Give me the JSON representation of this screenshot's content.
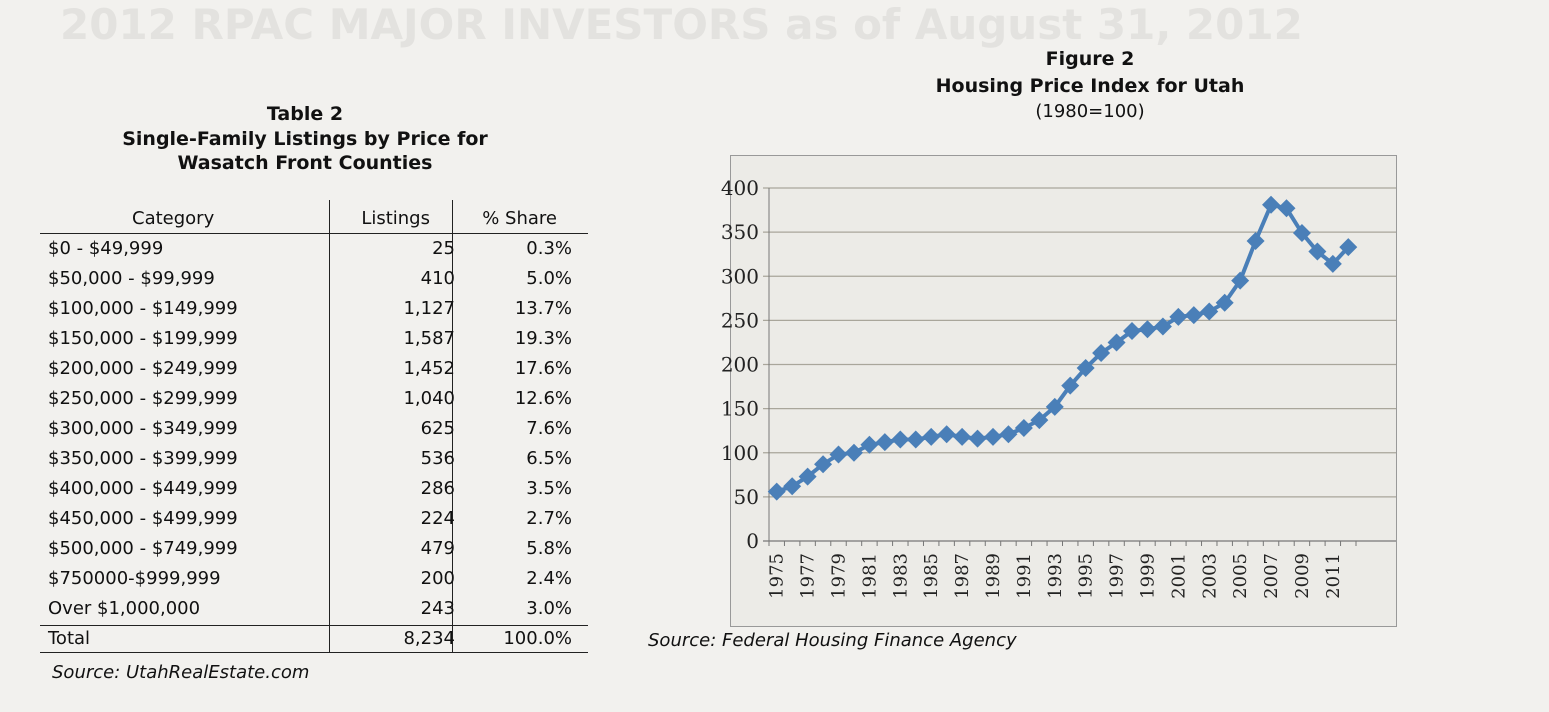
{
  "background_text": "2012 RPAC MAJOR INVESTORS as of August 31, 2012",
  "table": {
    "label": "Table 2",
    "title_line1": "Single-Family Listings by Price for",
    "title_line2": "Wasatch Front Counties",
    "headers": [
      "Category",
      "Listings",
      "% Share"
    ],
    "rows": [
      [
        "$0 - $49,999",
        "25",
        "0.3%"
      ],
      [
        "$50,000 - $99,999",
        "410",
        "5.0%"
      ],
      [
        "$100,000 - $149,999",
        "1,127",
        "13.7%"
      ],
      [
        "$150,000 - $199,999",
        "1,587",
        "19.3%"
      ],
      [
        "$200,000 - $249,999",
        "1,452",
        "17.6%"
      ],
      [
        "$250,000 - $299,999",
        "1,040",
        "12.6%"
      ],
      [
        "$300,000 - $349,999",
        "625",
        "7.6%"
      ],
      [
        "$350,000 - $399,999",
        "536",
        "6.5%"
      ],
      [
        "$400,000 - $449,999",
        "286",
        "3.5%"
      ],
      [
        "$450,000 - $499,999",
        "224",
        "2.7%"
      ],
      [
        "$500,000 - $749,999",
        "479",
        "5.8%"
      ],
      [
        "$750000-$999,999",
        "200",
        "2.4%"
      ],
      [
        "Over $1,000,000",
        "243",
        "3.0%"
      ]
    ],
    "total": [
      "Total",
      "8,234",
      "100.0%"
    ],
    "source": "Source: UtahRealEstate.com"
  },
  "chart_data": {
    "type": "line",
    "label": "Figure 2",
    "title": "Housing Price Index for Utah",
    "subtitle": "(1980=100)",
    "source": "Source: Federal Housing Finance Agency",
    "color": "#4a7fb8",
    "marker": "diamond",
    "grid": true,
    "ylim": [
      0,
      400
    ],
    "yticks": [
      0,
      50,
      100,
      150,
      200,
      250,
      300,
      350,
      400
    ],
    "xticks": [
      1975,
      1977,
      1979,
      1981,
      1983,
      1985,
      1987,
      1989,
      1991,
      1993,
      1995,
      1997,
      1999,
      2001,
      2003,
      2005,
      2007,
      2009,
      2011
    ],
    "x": [
      1975,
      1976,
      1977,
      1978,
      1979,
      1980,
      1981,
      1982,
      1983,
      1984,
      1985,
      1986,
      1987,
      1988,
      1989,
      1990,
      1991,
      1992,
      1993,
      1994,
      1995,
      1996,
      1997,
      1998,
      1999,
      2000,
      2001,
      2002,
      2003,
      2004,
      2005,
      2006,
      2007,
      2008,
      2009,
      2010,
      2011,
      2012
    ],
    "y": [
      56,
      62,
      73,
      87,
      98,
      100,
      109,
      112,
      115,
      115,
      118,
      121,
      118,
      116,
      118,
      121,
      128,
      137,
      152,
      176,
      196,
      213,
      225,
      238,
      240,
      243,
      254,
      256,
      260,
      270,
      295,
      340,
      381,
      377,
      349,
      328,
      314,
      333
    ]
  }
}
